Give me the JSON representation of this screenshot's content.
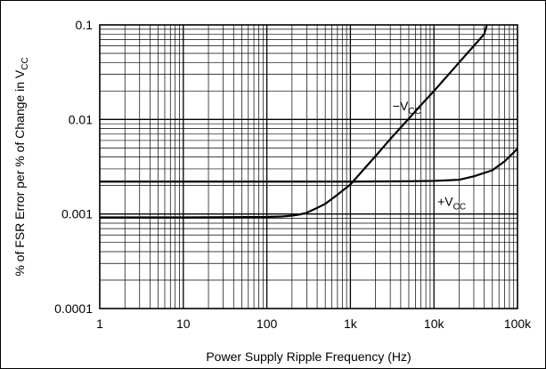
{
  "chart_data": {
    "type": "line",
    "title": "",
    "xlabel": "Power Supply Ripple Frequency (Hz)",
    "ylabel_main": "% of FSR Error per % of Change in V",
    "ylabel_sub": "CC",
    "x_scale": "log",
    "y_scale": "log",
    "xlim": [
      1,
      100000
    ],
    "ylim": [
      0.0001,
      0.1
    ],
    "grid": true,
    "x_ticks": [
      {
        "value": 1,
        "label": "1"
      },
      {
        "value": 10,
        "label": "10"
      },
      {
        "value": 100,
        "label": "100"
      },
      {
        "value": 1000,
        "label": "1k"
      },
      {
        "value": 10000,
        "label": "10k"
      },
      {
        "value": 100000,
        "label": "100k"
      }
    ],
    "y_ticks": [
      {
        "value": 0.0001,
        "label": "0.0001"
      },
      {
        "value": 0.001,
        "label": "0.001"
      },
      {
        "value": 0.01,
        "label": "0.01"
      },
      {
        "value": 0.1,
        "label": "0.1"
      }
    ],
    "series": [
      {
        "name": "−V",
        "name_sub": "CC",
        "label_at": {
          "x": 3200,
          "y": 0.0125
        },
        "x": [
          1,
          10,
          100,
          150,
          200,
          250,
          300,
          400,
          500,
          700,
          1000,
          2000,
          3000,
          5000,
          7000,
          10000,
          20000,
          30000,
          40000,
          43000
        ],
        "y": [
          0.00092,
          0.00092,
          0.00093,
          0.00094,
          0.00096,
          0.00099,
          0.00103,
          0.00116,
          0.00128,
          0.0016,
          0.00205,
          0.0041,
          0.0062,
          0.0102,
          0.0142,
          0.02,
          0.04,
          0.06,
          0.08,
          0.1
        ]
      },
      {
        "name": "+V",
        "name_sub": "CC",
        "label_at": {
          "x": 11000,
          "y": 0.00122
        },
        "x": [
          1,
          100,
          1000,
          5000,
          10000,
          20000,
          30000,
          50000,
          70000,
          100000
        ],
        "y": [
          0.0022,
          0.0022,
          0.0022,
          0.00222,
          0.00224,
          0.0023,
          0.0025,
          0.0029,
          0.0036,
          0.0049
        ]
      }
    ]
  }
}
